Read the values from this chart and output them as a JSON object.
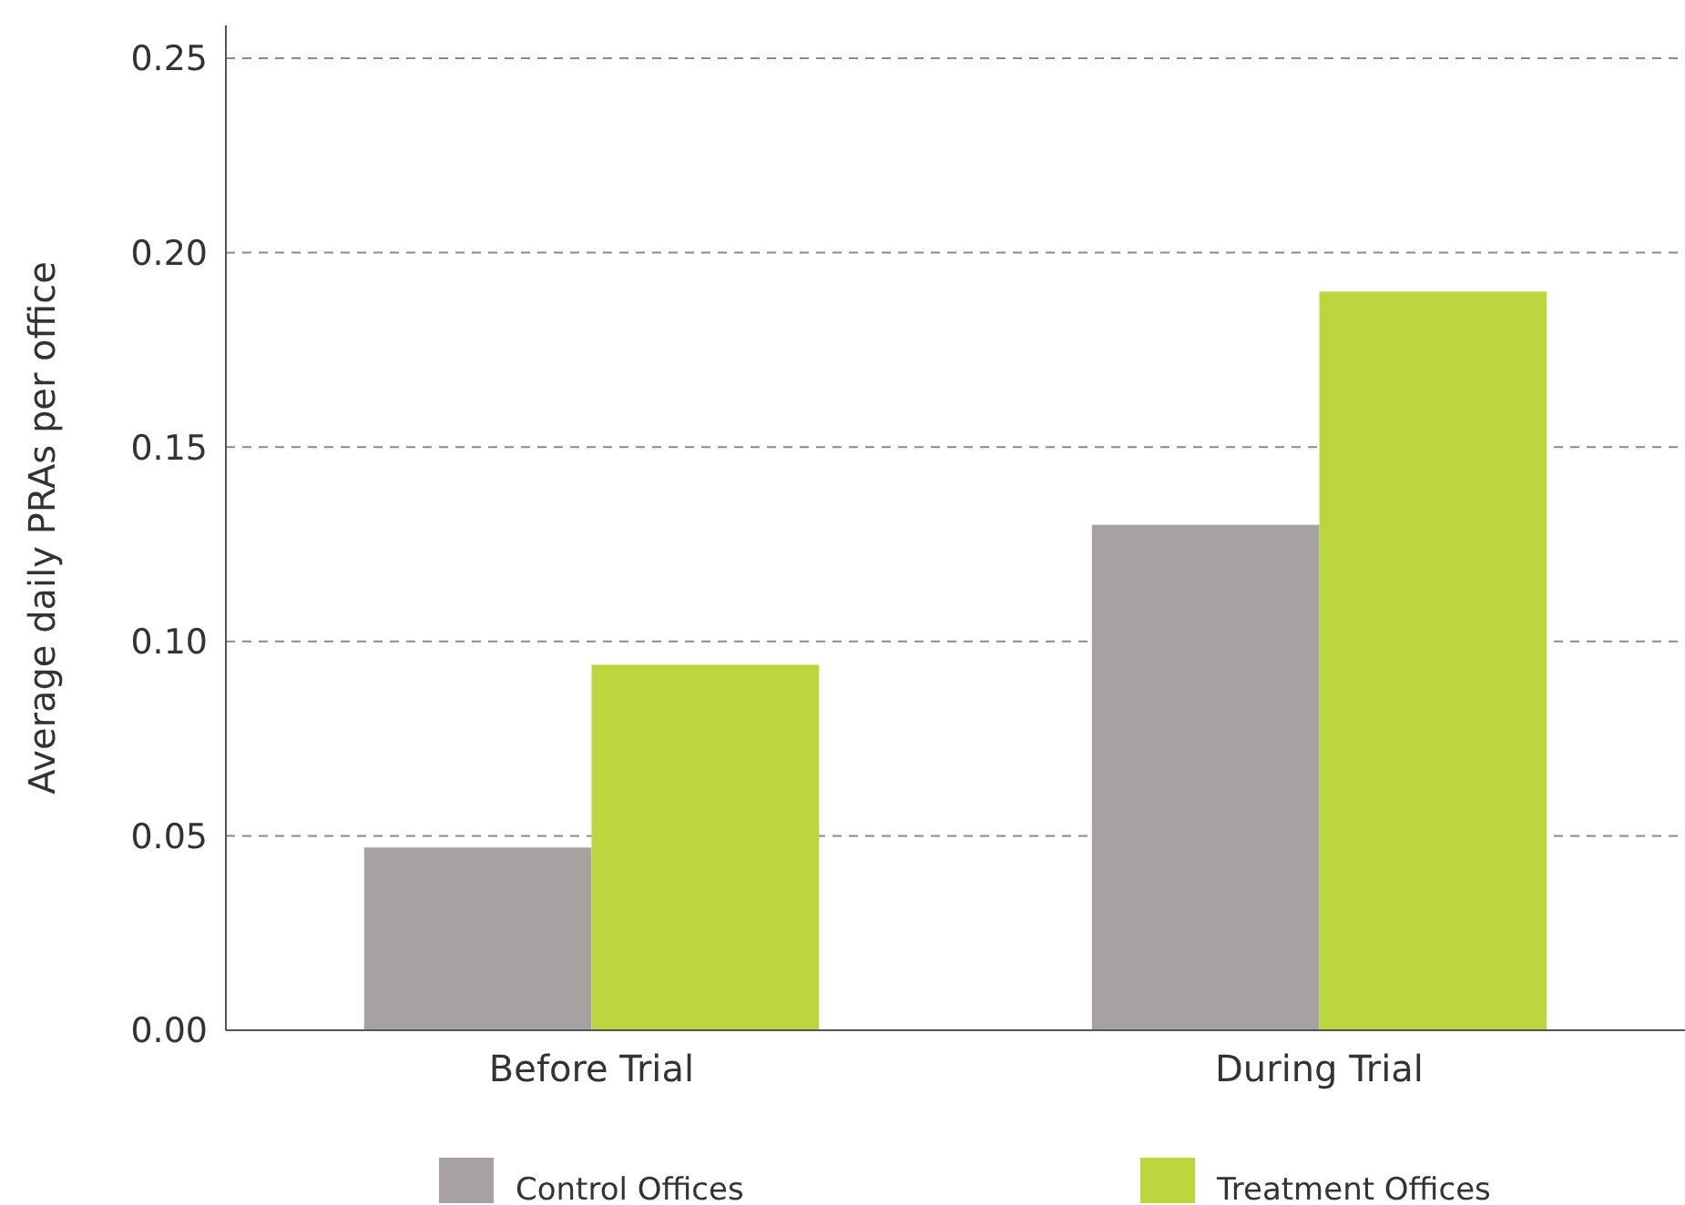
{
  "chart_data": {
    "type": "bar",
    "ylabel": "Average daily PRAs per office",
    "categories": [
      "Before Trial",
      "During Trial"
    ],
    "series": [
      {
        "name": "Control Offices",
        "color": "#a7a2a1",
        "values": [
          0.047,
          0.13
        ]
      },
      {
        "name": "Treatment Offices",
        "color": "#bdd63d",
        "values": [
          0.094,
          0.19
        ]
      }
    ],
    "ylim": [
      0,
      0.25
    ],
    "yticks": [
      {
        "value": 0,
        "label": "0.00"
      },
      {
        "value": 0.05,
        "label": "0.05"
      },
      {
        "value": 0.1,
        "label": "0.10"
      },
      {
        "value": 0.15,
        "label": "0.15"
      },
      {
        "value": 0.2,
        "label": "0.20"
      },
      {
        "value": 0.25,
        "label": "0.25"
      }
    ],
    "grid": "y",
    "legend": "bottom"
  }
}
